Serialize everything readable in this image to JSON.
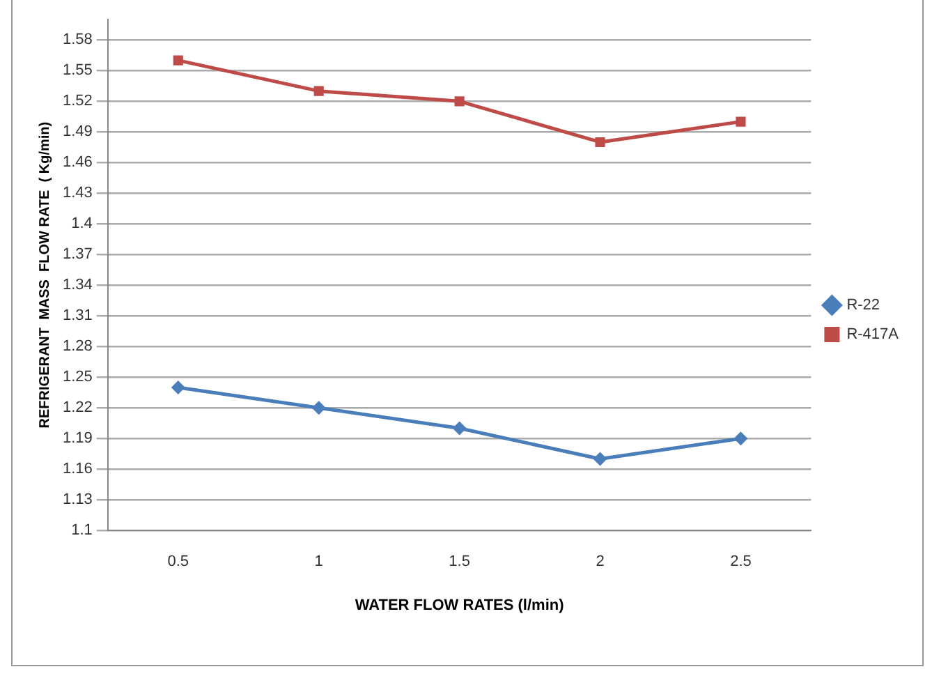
{
  "chart_data": {
    "type": "line",
    "xlabel": "WATER FLOW RATES (l/min)",
    "ylabel": "REFRIGERANT  MASS  FLOW RATE  ( Kg/min)",
    "categories": [
      "0.5",
      "1",
      "1.5",
      "2",
      "2.5"
    ],
    "series": [
      {
        "name": "R-22",
        "color": "#4a7ebb",
        "marker": "diamond",
        "values": [
          1.24,
          1.22,
          1.2,
          1.17,
          1.19
        ]
      },
      {
        "name": "R-417A",
        "color": "#be4b48",
        "marker": "square",
        "values": [
          1.56,
          1.53,
          1.52,
          1.48,
          1.5
        ]
      }
    ],
    "ylim": [
      1.1,
      1.6
    ],
    "yticks": [
      1.1,
      1.13,
      1.16,
      1.19,
      1.22,
      1.25,
      1.28,
      1.31,
      1.34,
      1.37,
      1.4,
      1.43,
      1.46,
      1.49,
      1.52,
      1.55,
      1.58
    ],
    "grid": "y",
    "legend": "right",
    "line_style": "solid"
  }
}
